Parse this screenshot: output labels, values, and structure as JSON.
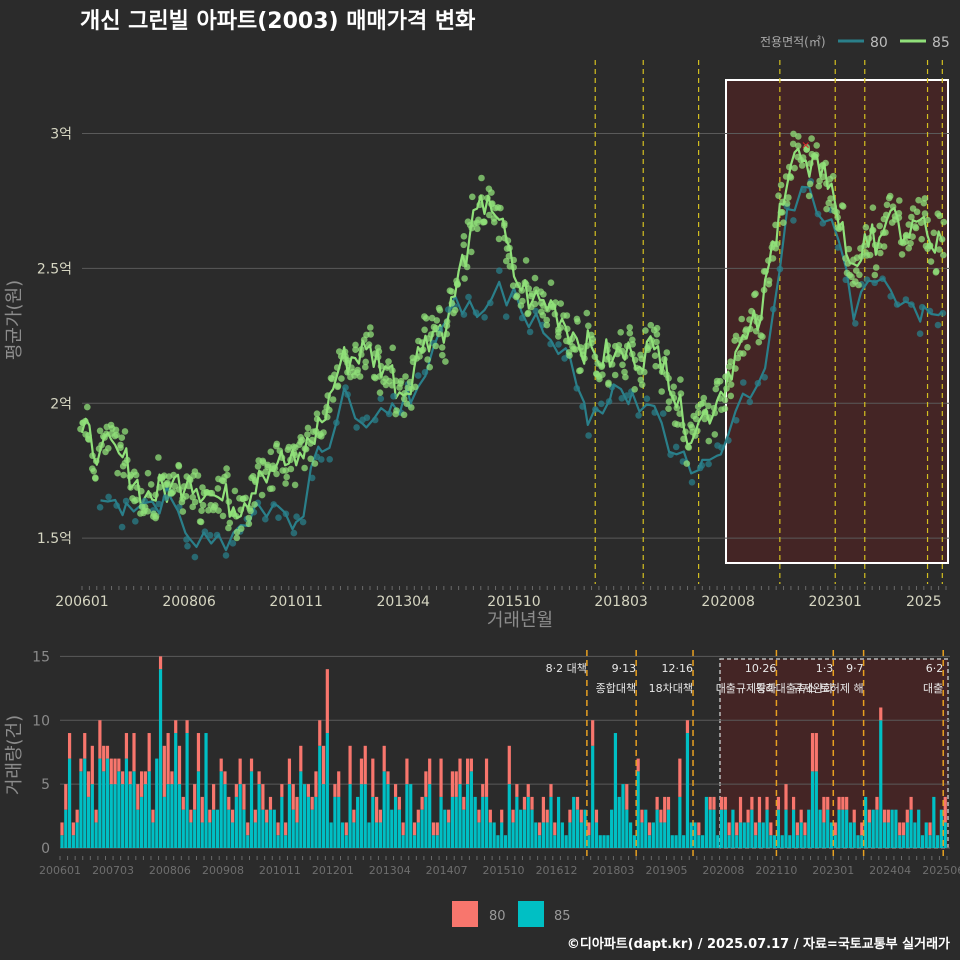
{
  "title": "개신 그린빌 아파트(2003) 매매가격 변화",
  "credit": "©디아파트(dapt.kr) / 2025.07.17 / 자료=국토교통부 실거래가",
  "colors": {
    "background": "#2b2b2b",
    "series_80": "#2a7f8a",
    "series_85": "#90e07a",
    "bar_80": "#f8766d",
    "bar_85": "#00bfc4",
    "policy_line": "#d4c020",
    "highlight_fill": "#5a2020",
    "marker_x": "#e0202a"
  },
  "chart_data": [
    {
      "type": "line",
      "title": "개신 그린빌 아파트(2003) 매매가격 변화",
      "xlabel": "거래년월",
      "ylabel": "평균가(원)",
      "legend_title": "전용면적(㎡)",
      "legend_position": "top-right",
      "x_tick_labels": [
        "200601",
        "200806",
        "201011",
        "201304",
        "201510",
        "201803",
        "202008",
        "202301",
        "2025"
      ],
      "y_tick_labels": [
        "1.5억",
        "2억",
        "2.5억",
        "3억"
      ],
      "y_ticks": [
        15000,
        20000,
        25000,
        30000
      ],
      "ylim": [
        13300,
        32800
      ],
      "xlim": [
        "2006-01",
        "2025-07"
      ],
      "grid": true,
      "highlight_range": [
        "2020-08",
        "2025-06"
      ],
      "policy_lines": [
        "2017-08",
        "2018-09",
        "2019-12",
        "2021-10",
        "2023-01",
        "2023-09",
        "2025-02",
        "2025-06"
      ],
      "series": [
        {
          "name": "80",
          "points": [
            [
              "2006-06",
              16400
            ],
            [
              "2007-01",
              16300
            ],
            [
              "2007-06",
              16300
            ],
            [
              "2008-01",
              16500
            ],
            [
              "2008-06",
              15000
            ],
            [
              "2008-12",
              14800
            ],
            [
              "2009-06",
              15200
            ],
            [
              "2010-01",
              16200
            ],
            [
              "2010-06",
              16200
            ],
            [
              "2010-11",
              15600
            ],
            [
              "2011-06",
              18200
            ],
            [
              "2012-01",
              20300
            ],
            [
              "2012-06",
              19100
            ],
            [
              "2013-01",
              20000
            ],
            [
              "2013-06",
              20000
            ],
            [
              "2013-12",
              22000
            ],
            [
              "2014-06",
              24000
            ],
            [
              "2014-12",
              23200
            ],
            [
              "2015-06",
              24500
            ],
            [
              "2015-12",
              23400
            ],
            [
              "2016-06",
              22600
            ],
            [
              "2017-01",
              21800
            ],
            [
              "2017-06",
              19200
            ],
            [
              "2018-01",
              20700
            ],
            [
              "2018-06",
              20400
            ],
            [
              "2018-12",
              19900
            ],
            [
              "2019-04",
              18200
            ],
            [
              "2019-10",
              17400
            ],
            [
              "2020-01",
              17900
            ],
            [
              "2020-06",
              18100
            ],
            [
              "2020-10",
              19700
            ],
            [
              "2021-02",
              20200
            ],
            [
              "2021-06",
              21300
            ],
            [
              "2021-12",
              27200
            ],
            [
              "2022-06",
              28000
            ],
            [
              "2023-02",
              26000
            ],
            [
              "2023-06",
              23100
            ],
            [
              "2023-12",
              24500
            ],
            [
              "2024-06",
              23600
            ],
            [
              "2025-01",
              23600
            ],
            [
              "2025-06",
              23400
            ]
          ]
        },
        {
          "name": "85",
          "points": [
            [
              "2006-01",
              18900
            ],
            [
              "2006-06",
              18300
            ],
            [
              "2006-12",
              18000
            ],
            [
              "2007-06",
              16500
            ],
            [
              "2008-01",
              16900
            ],
            [
              "2008-06",
              17300
            ],
            [
              "2008-12",
              16600
            ],
            [
              "2009-03",
              16400
            ],
            [
              "2009-09",
              16300
            ],
            [
              "2010-01",
              17500
            ],
            [
              "2010-06",
              17800
            ],
            [
              "2010-11",
              17700
            ],
            [
              "2011-06",
              19300
            ],
            [
              "2011-11",
              21500
            ],
            [
              "2012-06",
              22000
            ],
            [
              "2012-12",
              21300
            ],
            [
              "2013-04",
              20300
            ],
            [
              "2013-10",
              22500
            ],
            [
              "2014-04",
              23000
            ],
            [
              "2014-10",
              26200
            ],
            [
              "2015-03",
              27700
            ],
            [
              "2015-06",
              26800
            ],
            [
              "2015-10",
              24700
            ],
            [
              "2016-03",
              23800
            ],
            [
              "2016-09",
              23600
            ],
            [
              "2017-03",
              22400
            ],
            [
              "2017-08",
              21800
            ],
            [
              "2018-01",
              21700
            ],
            [
              "2018-06",
              21800
            ],
            [
              "2018-12",
              22000
            ],
            [
              "2019-03",
              21700
            ],
            [
              "2019-08",
              19100
            ],
            [
              "2019-12",
              19300
            ],
            [
              "2020-05",
              20100
            ],
            [
              "2020-10",
              21900
            ],
            [
              "2021-01",
              22400
            ],
            [
              "2021-05",
              23200
            ],
            [
              "2021-10",
              27400
            ],
            [
              "2022-02",
              29300
            ],
            [
              "2022-06",
              28400
            ],
            [
              "2022-10",
              28900
            ],
            [
              "2023-01",
              27400
            ],
            [
              "2023-05",
              25200
            ],
            [
              "2023-10",
              25800
            ],
            [
              "2024-03",
              26800
            ],
            [
              "2024-08",
              26200
            ],
            [
              "2024-12",
              26800
            ],
            [
              "2025-03",
              25800
            ],
            [
              "2025-06",
              26000
            ]
          ]
        }
      ]
    },
    {
      "type": "bar",
      "ylabel": "거래량(건)",
      "stacked": true,
      "x_tick_labels": [
        "200601",
        "200703",
        "200806",
        "200908",
        "201011",
        "201201",
        "201304",
        "201407",
        "201510",
        "201612",
        "201803",
        "201905",
        "202008",
        "202110",
        "202301",
        "202404",
        "202506"
      ],
      "y_tick_labels": [
        "0",
        "5",
        "10",
        "15"
      ],
      "y_ticks": [
        0,
        5,
        10,
        15
      ],
      "ylim": [
        0,
        15.5
      ],
      "highlight_range": [
        "2020-08",
        "2025-06"
      ],
      "policies": [
        {
          "date": "2017-08",
          "label": "8·2 대책",
          "sublabel": ""
        },
        {
          "date": "2018-09",
          "label": "9·13",
          "sublabel": "종합대책"
        },
        {
          "date": "2019-12",
          "label": "12·16",
          "sublabel": "18차대책"
        },
        {
          "date": "2021-10",
          "label": "10·26",
          "sublabel": "대출규제강화"
        },
        {
          "date": "2023-01",
          "label": "1·3",
          "sublabel": "규제완화"
        },
        {
          "date": "2023-09",
          "label": "9·7",
          "sublabel": "특례대출축소 토허제 해"
        },
        {
          "date": "2025-06",
          "label": "6·2",
          "sublabel": "대출"
        }
      ],
      "series": [
        {
          "name": "80",
          "peak_value": 15
        },
        {
          "name": "85",
          "peak_value": 14
        }
      ],
      "legend_position": "bottom"
    }
  ]
}
